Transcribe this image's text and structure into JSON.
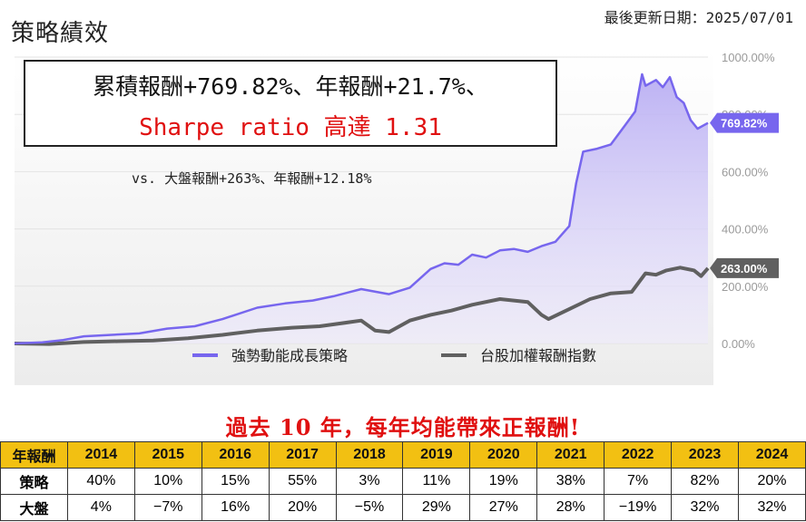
{
  "header": {
    "title": "策略績效",
    "updated": "最後更新日期：2025/07/01"
  },
  "summary": {
    "line1": "累積報酬+769.82%、年報酬+21.7%、",
    "line2": "Sharpe ratio 高達 1.31",
    "vs_line": "vs. 大盤報酬+263%、年報酬+12.18%"
  },
  "headline": "過去 10 年，每年均能帶來正報酬!",
  "colors": {
    "strategy": "#7766ee",
    "strategy_fill": "#cfc8f5",
    "market": "#606060",
    "headline": "#e01010",
    "table_header": "#f2c012"
  },
  "chart_data": {
    "type": "area",
    "ylim": [
      0,
      1000
    ],
    "y_ticks": [
      "0.00%",
      "200.00%",
      "400.00%",
      "600.00%",
      "800.00%",
      "1000.00%"
    ],
    "y_tick_values": [
      0,
      200,
      400,
      600,
      800,
      1000
    ],
    "legend_position": "bottom",
    "series": [
      {
        "name": "強勢動能成長策略",
        "end_label": "769.82%",
        "points": [
          [
            0,
            0
          ],
          [
            0.04,
            4
          ],
          [
            0.07,
            12
          ],
          [
            0.1,
            25
          ],
          [
            0.14,
            30
          ],
          [
            0.18,
            35
          ],
          [
            0.22,
            52
          ],
          [
            0.26,
            60
          ],
          [
            0.3,
            85
          ],
          [
            0.35,
            125
          ],
          [
            0.39,
            140
          ],
          [
            0.43,
            150
          ],
          [
            0.46,
            165
          ],
          [
            0.5,
            190
          ],
          [
            0.54,
            172
          ],
          [
            0.57,
            195
          ],
          [
            0.6,
            260
          ],
          [
            0.62,
            280
          ],
          [
            0.64,
            275
          ],
          [
            0.66,
            310
          ],
          [
            0.68,
            300
          ],
          [
            0.7,
            325
          ],
          [
            0.72,
            330
          ],
          [
            0.74,
            320
          ],
          [
            0.76,
            340
          ],
          [
            0.78,
            355
          ],
          [
            0.8,
            410
          ],
          [
            0.81,
            560
          ],
          [
            0.82,
            670
          ],
          [
            0.84,
            680
          ],
          [
            0.86,
            695
          ],
          [
            0.88,
            760
          ],
          [
            0.895,
            810
          ],
          [
            0.905,
            940
          ],
          [
            0.91,
            900
          ],
          [
            0.925,
            920
          ],
          [
            0.935,
            895
          ],
          [
            0.945,
            930
          ],
          [
            0.955,
            860
          ],
          [
            0.965,
            840
          ],
          [
            0.975,
            780
          ],
          [
            0.985,
            750
          ],
          [
            1.0,
            770
          ]
        ]
      },
      {
        "name": "台股加權報酬指數",
        "end_label": "263.00%",
        "points": [
          [
            0,
            0
          ],
          [
            0.05,
            -2
          ],
          [
            0.1,
            5
          ],
          [
            0.15,
            8
          ],
          [
            0.2,
            10
          ],
          [
            0.25,
            18
          ],
          [
            0.3,
            30
          ],
          [
            0.35,
            45
          ],
          [
            0.4,
            55
          ],
          [
            0.44,
            60
          ],
          [
            0.47,
            70
          ],
          [
            0.5,
            80
          ],
          [
            0.52,
            45
          ],
          [
            0.54,
            40
          ],
          [
            0.57,
            80
          ],
          [
            0.6,
            100
          ],
          [
            0.63,
            115
          ],
          [
            0.66,
            135
          ],
          [
            0.7,
            155
          ],
          [
            0.74,
            145
          ],
          [
            0.76,
            100
          ],
          [
            0.77,
            85
          ],
          [
            0.8,
            120
          ],
          [
            0.83,
            155
          ],
          [
            0.86,
            175
          ],
          [
            0.89,
            180
          ],
          [
            0.91,
            245
          ],
          [
            0.925,
            240
          ],
          [
            0.94,
            255
          ],
          [
            0.96,
            265
          ],
          [
            0.98,
            255
          ],
          [
            0.99,
            235
          ],
          [
            1.0,
            263
          ]
        ]
      }
    ]
  },
  "table": {
    "header": [
      "年報酬",
      "2014",
      "2015",
      "2016",
      "2017",
      "2018",
      "2019",
      "2020",
      "2021",
      "2022",
      "2023",
      "2024"
    ],
    "rows": [
      {
        "label": "策略",
        "values": [
          "40%",
          "10%",
          "15%",
          "55%",
          "3%",
          "11%",
          "19%",
          "38%",
          "7%",
          "82%",
          "20%"
        ]
      },
      {
        "label": "大盤",
        "values": [
          "4%",
          "−7%",
          "16%",
          "20%",
          "−5%",
          "29%",
          "27%",
          "28%",
          "−19%",
          "32%",
          "32%"
        ]
      }
    ]
  }
}
